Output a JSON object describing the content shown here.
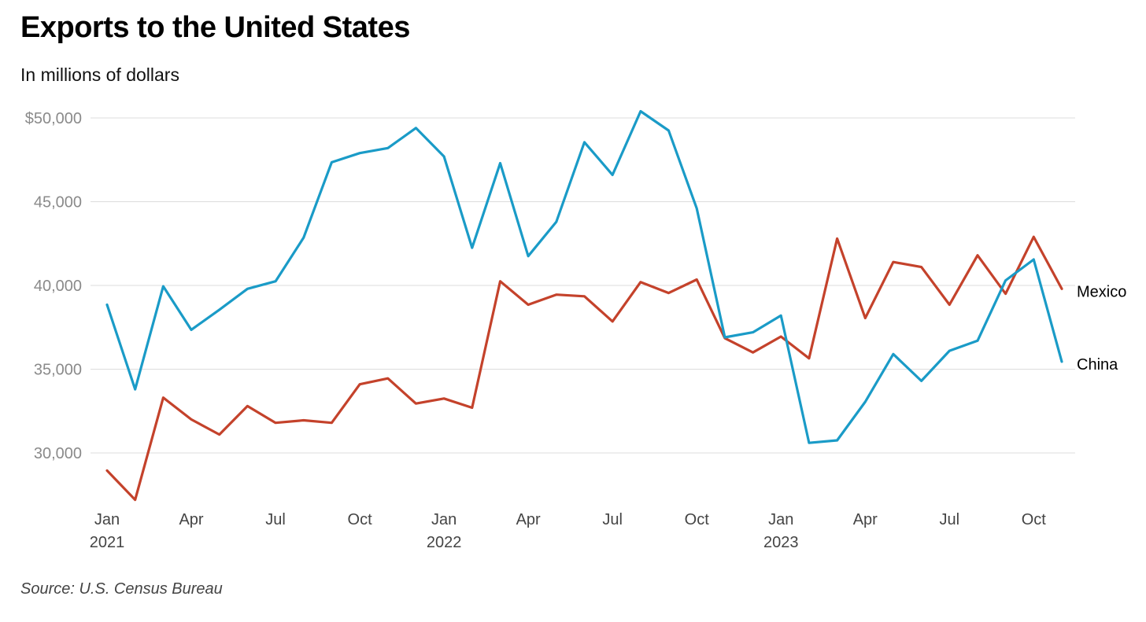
{
  "title": "Exports to the United States",
  "subtitle": "In millions of dollars",
  "source": "Source: U.S. Census Bureau",
  "chart_data": {
    "type": "line",
    "title": "Exports to the United States",
    "subtitle": "In millions of dollars",
    "xlabel": "",
    "ylabel": "",
    "ylim": [
      27000,
      50500
    ],
    "y_ticks": [
      {
        "value": 50000,
        "label": "$50,000"
      },
      {
        "value": 45000,
        "label": "45,000"
      },
      {
        "value": 40000,
        "label": "40,000"
      },
      {
        "value": 35000,
        "label": "35,000"
      },
      {
        "value": 30000,
        "label": "30,000"
      }
    ],
    "x": [
      "2021-01",
      "2021-02",
      "2021-03",
      "2021-04",
      "2021-05",
      "2021-06",
      "2021-07",
      "2021-08",
      "2021-09",
      "2021-10",
      "2021-11",
      "2021-12",
      "2022-01",
      "2022-02",
      "2022-03",
      "2022-04",
      "2022-05",
      "2022-06",
      "2022-07",
      "2022-08",
      "2022-09",
      "2022-10",
      "2022-11",
      "2022-12",
      "2023-01",
      "2023-02",
      "2023-03",
      "2023-04",
      "2023-05",
      "2023-06",
      "2023-07",
      "2023-08",
      "2023-09",
      "2023-10",
      "2023-11"
    ],
    "x_ticks": [
      {
        "at": "2021-01",
        "label": "Jan",
        "year": "2021"
      },
      {
        "at": "2021-04",
        "label": "Apr",
        "year": ""
      },
      {
        "at": "2021-07",
        "label": "Jul",
        "year": ""
      },
      {
        "at": "2021-10",
        "label": "Oct",
        "year": ""
      },
      {
        "at": "2022-01",
        "label": "Jan",
        "year": "2022"
      },
      {
        "at": "2022-04",
        "label": "Apr",
        "year": ""
      },
      {
        "at": "2022-07",
        "label": "Jul",
        "year": ""
      },
      {
        "at": "2022-10",
        "label": "Oct",
        "year": ""
      },
      {
        "at": "2023-01",
        "label": "Jan",
        "year": "2023"
      },
      {
        "at": "2023-04",
        "label": "Apr",
        "year": ""
      },
      {
        "at": "2023-07",
        "label": "Jul",
        "year": ""
      },
      {
        "at": "2023-10",
        "label": "Oct",
        "year": ""
      }
    ],
    "grid": true,
    "series": [
      {
        "name": "China",
        "color": "#1a9bc7",
        "values": [
          38850,
          33800,
          39950,
          37350,
          38550,
          39800,
          40250,
          42850,
          47350,
          47900,
          48200,
          49400,
          47700,
          42250,
          47300,
          41750,
          43800,
          48550,
          46600,
          50400,
          49250,
          44600,
          36900,
          37200,
          38200,
          30600,
          30750,
          33050,
          35900,
          34300,
          36100,
          36700,
          40300,
          41550,
          35450
        ]
      },
      {
        "name": "Mexico",
        "color": "#c4422b",
        "values": [
          28950,
          27200,
          33300,
          32000,
          31100,
          32800,
          31800,
          31950,
          31800,
          34100,
          34450,
          32950,
          33250,
          32700,
          40250,
          38850,
          39450,
          39350,
          37850,
          40200,
          39550,
          40350,
          36850,
          36000,
          36950,
          35650,
          42800,
          38050,
          41400,
          41100,
          38850,
          41800,
          39500,
          42900,
          39800
        ]
      }
    ]
  }
}
